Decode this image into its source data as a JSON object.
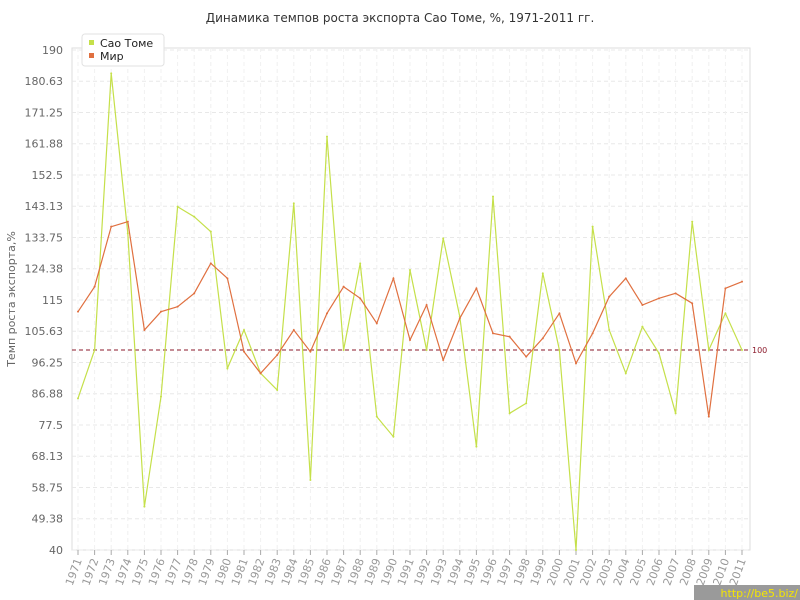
{
  "chart_data": {
    "type": "line",
    "title": "Динамика темпов роста экспорта Сао Томе, %, 1971-2011 гг.",
    "ylabel": "Темп роста экспорта,%",
    "xlabel": "",
    "ylim": [
      40,
      190
    ],
    "y_ticks": [
      "40",
      "49.38",
      "58.75",
      "68.13",
      "77.5",
      "86.88",
      "96.25",
      "105.63",
      "115",
      "124.38",
      "133.75",
      "143.13",
      "152.5",
      "161.88",
      "171.25",
      "180.63",
      "190"
    ],
    "y_tick_values": [
      40,
      49.38,
      58.75,
      68.13,
      77.5,
      86.88,
      96.25,
      105.63,
      115,
      124.38,
      133.75,
      143.13,
      152.5,
      161.88,
      171.25,
      180.63,
      190
    ],
    "x": [
      "1971",
      "1972",
      "1973",
      "1974",
      "1975",
      "1976",
      "1977",
      "1978",
      "1979",
      "1980",
      "1981",
      "1982",
      "1983",
      "1984",
      "1985",
      "1986",
      "1987",
      "1988",
      "1989",
      "1990",
      "1991",
      "1992",
      "1993",
      "1994",
      "1995",
      "1996",
      "1997",
      "1998",
      "1999",
      "2000",
      "2001",
      "2002",
      "2003",
      "2004",
      "2005",
      "2006",
      "2007",
      "2008",
      "2009",
      "2010",
      "2011"
    ],
    "series": [
      {
        "name": "Сао Томе",
        "color": "#c5e04a",
        "values": [
          85.5,
          100,
          183,
          135,
          53,
          86,
          143,
          140,
          135.5,
          94.5,
          106,
          93,
          88,
          144,
          61,
          164,
          100,
          126,
          80,
          74,
          124,
          100,
          133.5,
          110,
          71,
          146,
          81,
          84,
          123,
          100,
          40,
          137,
          106,
          93,
          107,
          99,
          81,
          138.5,
          100,
          111,
          100
        ]
      },
      {
        "name": "Мир",
        "color": "#e07040",
        "values": [
          111.5,
          119,
          137,
          138.5,
          106,
          111.5,
          113,
          117,
          126,
          121.5,
          99.5,
          93,
          98.5,
          106,
          99.5,
          111,
          119,
          115.5,
          108,
          121.5,
          103,
          113.5,
          97,
          109.5,
          118.5,
          105,
          104,
          98,
          103.5,
          111,
          96,
          105,
          116,
          121.5,
          113.5,
          115.5,
          117,
          114,
          80,
          118.5,
          120.5
        ]
      }
    ],
    "reference_line": {
      "value": 100,
      "label": "100",
      "color": "#8b1a2b"
    },
    "grid": true,
    "legend_position": "top-left"
  },
  "watermark": "http://be5.biz/",
  "watermark_color": "#f5e600"
}
